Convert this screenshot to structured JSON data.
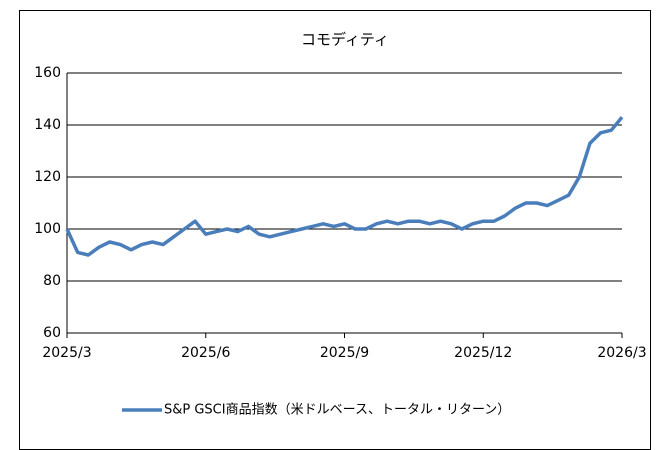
{
  "chart_data": {
    "type": "line",
    "title": "コモディティ",
    "categories": [
      "2025/3",
      null,
      null,
      null,
      null,
      null,
      null,
      null,
      null,
      null,
      null,
      null,
      null,
      "2025/6",
      null,
      null,
      null,
      null,
      null,
      null,
      null,
      null,
      null,
      null,
      null,
      null,
      "2025/9",
      null,
      null,
      null,
      null,
      null,
      null,
      null,
      null,
      null,
      null,
      null,
      null,
      "2025/12",
      null,
      null,
      null,
      null,
      null,
      null,
      null,
      null,
      null,
      null,
      null,
      null,
      "2026/3"
    ],
    "series": [
      {
        "name": "S&P GSCI商品指数（米ドルベース、トータル・リターン）",
        "color": "#4a7ebb",
        "values": [
          100,
          91,
          90,
          93,
          95,
          94,
          92,
          94,
          95,
          94,
          97,
          100,
          103,
          98,
          99,
          100,
          99,
          101,
          98,
          97,
          98,
          99,
          100,
          101,
          102,
          101,
          102,
          100,
          100,
          102,
          103,
          102,
          103,
          103,
          102,
          103,
          102,
          100,
          102,
          103,
          103,
          105,
          108,
          110,
          110,
          109,
          111,
          113,
          120,
          133,
          137,
          138,
          143
        ]
      }
    ],
    "ylim": [
      60,
      160
    ],
    "yticks": [
      60,
      80,
      100,
      120,
      140,
      160
    ],
    "grid": true,
    "legend": "bottom"
  }
}
